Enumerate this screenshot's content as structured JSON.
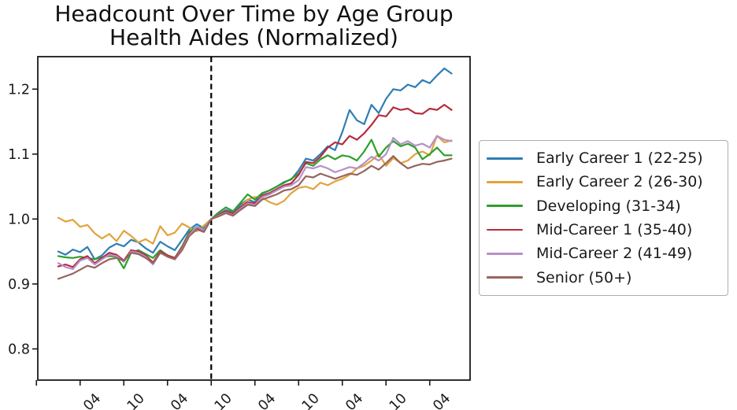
{
  "title": {
    "line1": "Headcount Over Time by Age Group",
    "line2": "Health Aides (Normalized)"
  },
  "chart_data": {
    "type": "line",
    "title": "Headcount Over Time by Age Group",
    "subtitle": "Health Aides (Normalized)",
    "xlabel": "",
    "ylabel": "",
    "ylim": [
      0.752,
      1.25
    ],
    "y_ticks": {
      "values": [
        0.8,
        0.9,
        1.0,
        1.1,
        1.2
      ],
      "labels": [
        "0.8",
        "0.9",
        "1.0",
        "1.1",
        "1.2"
      ]
    },
    "x_ticks": [
      {
        "index": -3,
        "label": ""
      },
      {
        "index": 3,
        "label": "04"
      },
      {
        "index": 9,
        "label": "10"
      },
      {
        "index": 15,
        "label": "04"
      },
      {
        "index": 21,
        "label": "10"
      },
      {
        "index": 27,
        "label": "04"
      },
      {
        "index": 33,
        "label": "10"
      },
      {
        "index": 39,
        "label": "04"
      },
      {
        "index": 45,
        "label": "10"
      },
      {
        "index": 51,
        "label": "04"
      }
    ],
    "x_tick_rotation_deg": -45,
    "n_points": 55,
    "vline": {
      "index": 21,
      "style": "dashed",
      "color": "#000000"
    },
    "grid": false,
    "legend_position": "right of plot",
    "series": [
      {
        "name": "Early Career 1 (22-25)",
        "color": "#2e7eb5",
        "values": [
          0.95,
          0.945,
          0.953,
          0.949,
          0.957,
          0.938,
          0.944,
          0.956,
          0.962,
          0.958,
          0.968,
          0.964,
          0.955,
          0.948,
          0.965,
          0.958,
          0.952,
          0.968,
          0.984,
          0.992,
          0.986,
          1.0,
          1.007,
          1.014,
          1.01,
          1.022,
          1.03,
          1.026,
          1.039,
          1.044,
          1.05,
          1.057,
          1.061,
          1.075,
          1.093,
          1.09,
          1.1,
          1.112,
          1.106,
          1.134,
          1.168,
          1.152,
          1.146,
          1.176,
          1.163,
          1.185,
          1.2,
          1.198,
          1.207,
          1.203,
          1.214,
          1.209,
          1.221,
          1.232,
          1.224
        ]
      },
      {
        "name": "Early Career 2 (26-30)",
        "color": "#e2a33c",
        "values": [
          1.002,
          0.996,
          0.999,
          0.988,
          0.991,
          0.978,
          0.97,
          0.977,
          0.966,
          0.982,
          0.974,
          0.964,
          0.969,
          0.962,
          0.989,
          0.975,
          0.979,
          0.993,
          0.987,
          0.981,
          0.99,
          1.0,
          1.006,
          1.012,
          1.008,
          1.018,
          1.03,
          1.034,
          1.033,
          1.026,
          1.022,
          1.028,
          1.04,
          1.048,
          1.05,
          1.046,
          1.056,
          1.052,
          1.058,
          1.062,
          1.068,
          1.078,
          1.082,
          1.09,
          1.1,
          1.082,
          1.094,
          1.086,
          1.09,
          1.1,
          1.104,
          1.098,
          1.128,
          1.118,
          1.121
        ]
      },
      {
        "name": "Developing (31-34)",
        "color": "#2ea02c",
        "values": [
          0.943,
          0.941,
          0.94,
          0.942,
          0.94,
          0.938,
          0.941,
          0.943,
          0.942,
          0.924,
          0.948,
          0.952,
          0.946,
          0.94,
          0.952,
          0.944,
          0.94,
          0.958,
          0.98,
          0.988,
          0.984,
          1.0,
          1.01,
          1.018,
          1.012,
          1.025,
          1.038,
          1.03,
          1.04,
          1.044,
          1.05,
          1.056,
          1.062,
          1.07,
          1.086,
          1.082,
          1.092,
          1.098,
          1.092,
          1.098,
          1.096,
          1.09,
          1.104,
          1.122,
          1.096,
          1.11,
          1.12,
          1.112,
          1.116,
          1.11,
          1.092,
          1.1,
          1.11,
          1.098,
          1.098
        ]
      },
      {
        "name": "Mid-Career 1 (35-40)",
        "color": "#b52c3e",
        "values": [
          0.927,
          0.93,
          0.926,
          0.938,
          0.943,
          0.932,
          0.94,
          0.948,
          0.945,
          0.936,
          0.952,
          0.95,
          0.944,
          0.933,
          0.95,
          0.944,
          0.94,
          0.956,
          0.978,
          0.986,
          0.982,
          1.0,
          1.006,
          1.012,
          1.008,
          1.018,
          1.026,
          1.024,
          1.036,
          1.04,
          1.046,
          1.052,
          1.055,
          1.068,
          1.088,
          1.086,
          1.096,
          1.11,
          1.118,
          1.115,
          1.128,
          1.122,
          1.132,
          1.145,
          1.16,
          1.158,
          1.172,
          1.168,
          1.17,
          1.163,
          1.162,
          1.17,
          1.168,
          1.176,
          1.168
        ]
      },
      {
        "name": "Mid-Career 2 (41-49)",
        "color": "#b78fc9",
        "values": [
          0.932,
          0.926,
          0.923,
          0.936,
          0.94,
          0.93,
          0.938,
          0.945,
          0.943,
          0.934,
          0.95,
          0.948,
          0.942,
          0.93,
          0.948,
          0.942,
          0.938,
          0.954,
          0.976,
          0.988,
          0.983,
          1.0,
          1.005,
          1.01,
          1.006,
          1.016,
          1.024,
          1.022,
          1.034,
          1.038,
          1.044,
          1.05,
          1.052,
          1.06,
          1.08,
          1.078,
          1.082,
          1.078,
          1.072,
          1.076,
          1.08,
          1.078,
          1.086,
          1.096,
          1.09,
          1.1,
          1.125,
          1.115,
          1.12,
          1.113,
          1.116,
          1.11,
          1.128,
          1.122,
          1.12
        ]
      },
      {
        "name": "Senior (50+)",
        "color": "#96655e",
        "values": [
          0.908,
          0.912,
          0.916,
          0.922,
          0.928,
          0.925,
          0.932,
          0.938,
          0.94,
          0.936,
          0.948,
          0.946,
          0.94,
          0.932,
          0.948,
          0.942,
          0.938,
          0.952,
          0.974,
          0.984,
          0.98,
          1.0,
          1.004,
          1.009,
          1.005,
          1.014,
          1.022,
          1.02,
          1.03,
          1.034,
          1.038,
          1.044,
          1.046,
          1.052,
          1.066,
          1.064,
          1.07,
          1.066,
          1.062,
          1.066,
          1.07,
          1.068,
          1.074,
          1.082,
          1.076,
          1.086,
          1.097,
          1.086,
          1.078,
          1.082,
          1.085,
          1.084,
          1.088,
          1.09,
          1.093
        ]
      }
    ]
  }
}
